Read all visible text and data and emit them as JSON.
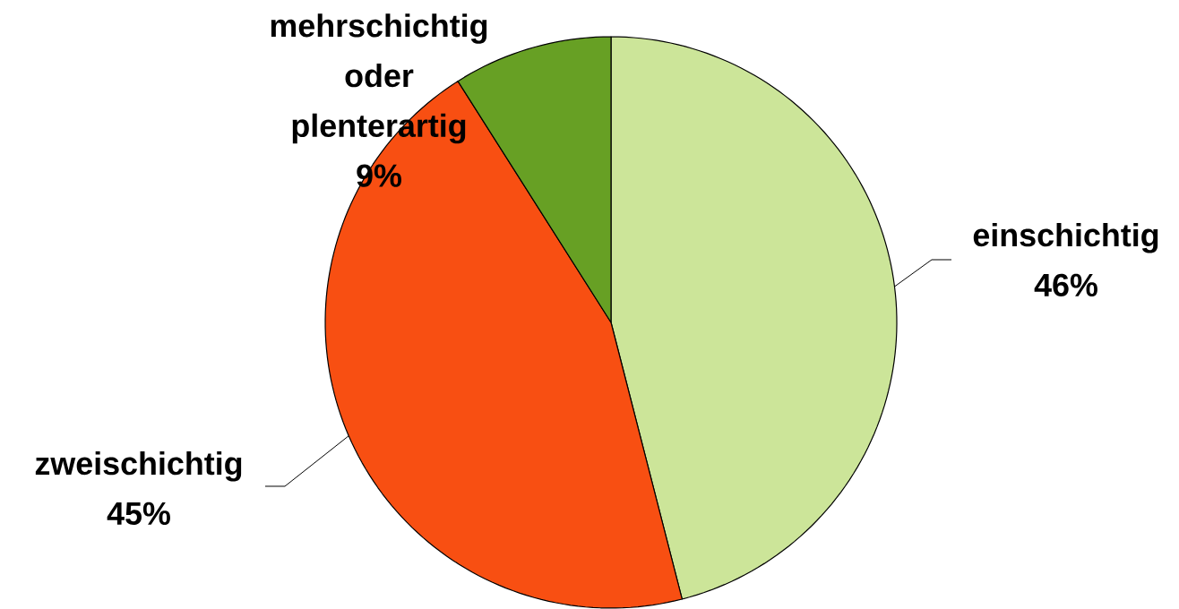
{
  "chart_data": {
    "type": "pie",
    "categories": [
      "einschichtig",
      "zweischichtig",
      "mehrschichtig oder plenterartig"
    ],
    "values": [
      46,
      45,
      9
    ],
    "value_labels": [
      "46%",
      "45%",
      "9%"
    ],
    "colors": [
      "#cce599",
      "#f84f12",
      "#67a024"
    ]
  }
}
